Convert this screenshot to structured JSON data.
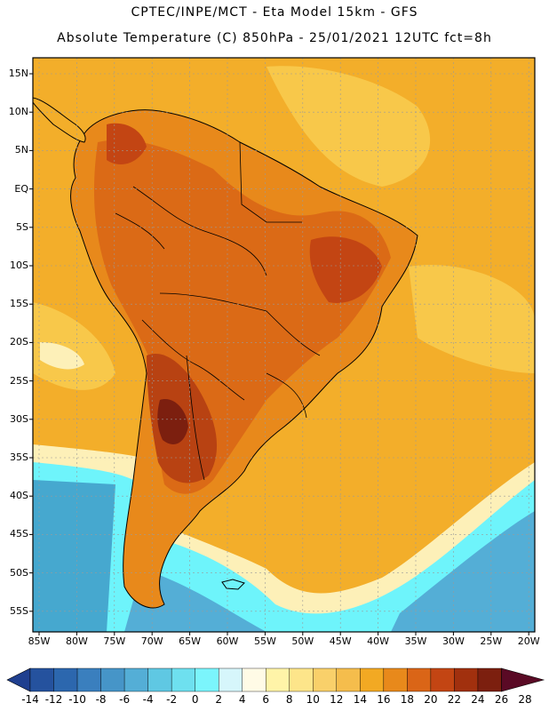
{
  "title": {
    "line1": "CPTEC/INPE/MCT -  Eta Model 15km - GFS",
    "line2": "Absolute Temperature (C) 850hPa - 25/01/2021 12UTC fct=8h"
  },
  "axes": {
    "lat_labels": [
      "15N",
      "10N",
      "5N",
      "EQ",
      "5S",
      "10S",
      "15S",
      "20S",
      "25S",
      "30S",
      "35S",
      "40S",
      "45S",
      "50S",
      "55S"
    ],
    "lon_labels": [
      "85W",
      "80W",
      "75W",
      "70W",
      "65W",
      "60W",
      "55W",
      "50W",
      "45W",
      "40W",
      "35W",
      "30W",
      "25W",
      "20W"
    ]
  },
  "colorbar": {
    "labels": [
      "-14",
      "-12",
      "-10",
      "-8",
      "-6",
      "-4",
      "-2",
      "0",
      "2",
      "4",
      "6",
      "8",
      "10",
      "12",
      "14",
      "16",
      "18",
      "20",
      "22",
      "24",
      "26",
      "28"
    ],
    "colors": [
      "#1f3f8f",
      "#25529e",
      "#2c67ae",
      "#3a7fbe",
      "#4695c8",
      "#54aed6",
      "#5fc8e3",
      "#6ee0ef",
      "#7bf5fc",
      "#d6f6fb",
      "#fffbe6",
      "#fff4a8",
      "#fde58a",
      "#f9d06a",
      "#f5bd4c",
      "#f2a923",
      "#e8891b",
      "#da6517",
      "#c34513",
      "#a1300e",
      "#7c1f0f",
      "#5a0a25"
    ]
  },
  "map": {
    "colors": {
      "ocean_warm": "#f3ae2a",
      "ocean_yellow": "#f8c84a",
      "ocean_cool": "#fdf0b8",
      "cold_cyan": "#6ef4fb",
      "cold_blue": "#46a8cf",
      "land_hot": "#db6a16",
      "land_hotter": "#b84212",
      "land_hottest": "#7c1f0f"
    }
  }
}
